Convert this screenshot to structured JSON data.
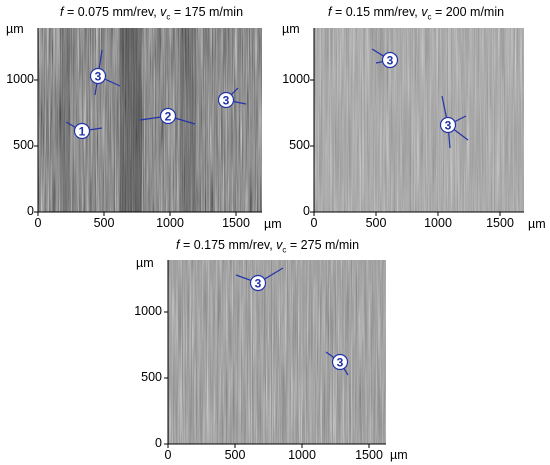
{
  "panels": [
    {
      "title_f": "f",
      "title_rest": " = 0.075 mm/rev, ",
      "title_v": "v",
      "title_sub": "c",
      "title_tail": " = 175 m/min",
      "y_unit": "µm",
      "x_unit": "µm",
      "y_ticks": [
        "1000",
        "500",
        "0"
      ],
      "x_ticks": [
        "0",
        "500",
        "1000",
        "1500"
      ],
      "callouts": [
        "3",
        "2",
        "3",
        "1"
      ]
    },
    {
      "title_f": "f",
      "title_rest": " = 0.15 mm/rev, ",
      "title_v": "v",
      "title_sub": "c",
      "title_tail": " = 200 m/min",
      "y_unit": "µm",
      "x_unit": "µm",
      "y_ticks": [
        "1000",
        "500",
        "0"
      ],
      "x_ticks": [
        "0",
        "500",
        "1000",
        "1500"
      ],
      "callouts": [
        "3",
        "3"
      ]
    },
    {
      "title_f": "f",
      "title_rest": " = 0.175 mm/rev, ",
      "title_v": "v",
      "title_sub": "c",
      "title_tail": " = 275 m/min",
      "y_unit": "µm",
      "x_unit": "µm",
      "y_ticks": [
        "1000",
        "500",
        "0"
      ],
      "x_ticks": [
        "0",
        "500",
        "1000",
        "1500"
      ],
      "callouts": [
        "3",
        "3"
      ]
    }
  ],
  "colors": {
    "callout": "#2233aa",
    "surface": "#8a8a8a"
  }
}
